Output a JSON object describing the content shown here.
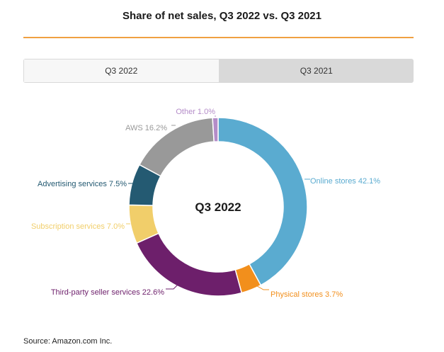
{
  "header": {
    "title": "Share of net sales, Q3 2022 vs. Q3 2021"
  },
  "tabs": [
    {
      "label": "Q3 2022",
      "active": true
    },
    {
      "label": "Q3 2021",
      "active": false
    }
  ],
  "chart_data": {
    "type": "pie",
    "subtype": "donut",
    "center_label": "Q3 2022",
    "slices": [
      {
        "name": "Online stores",
        "value": 42.1,
        "label": "Online stores 42.1%",
        "color": "#5aabd0"
      },
      {
        "name": "Physical stores",
        "value": 3.7,
        "label": "Physical stores 3.7%",
        "color": "#f28f1c"
      },
      {
        "name": "Third-party seller services",
        "value": 22.6,
        "label": "Third-party seller services 22.6%",
        "color": "#6d1f6b"
      },
      {
        "name": "Subscription services",
        "value": 7.0,
        "label": "Subscription services 7.0%",
        "color": "#f1ce6a"
      },
      {
        "name": "Advertising services",
        "value": 7.5,
        "label": "Advertising services 7.5%",
        "color": "#245a72"
      },
      {
        "name": "AWS",
        "value": 16.2,
        "label": "AWS 16.2%",
        "color": "#999999"
      },
      {
        "name": "Other",
        "value": 1.0,
        "label": "Other 1.0%",
        "color": "#b48cc8"
      }
    ]
  },
  "footer": {
    "source": "Source: Amazon.com Inc."
  }
}
